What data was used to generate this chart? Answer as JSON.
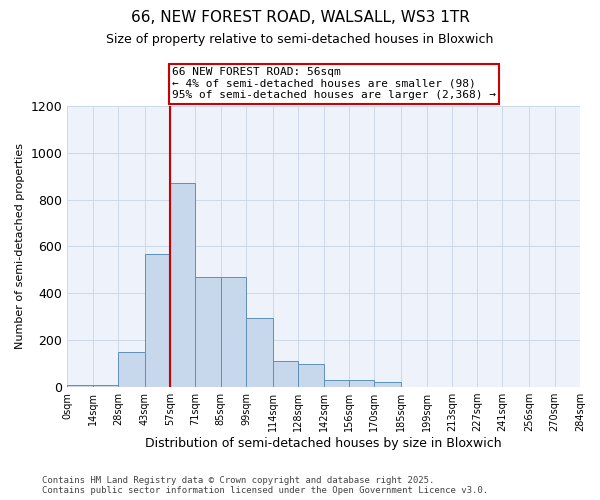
{
  "title_line1": "66, NEW FOREST ROAD, WALSALL, WS3 1TR",
  "title_line2": "Size of property relative to semi-detached houses in Bloxwich",
  "xlabel": "Distribution of semi-detached houses by size in Bloxwich",
  "ylabel": "Number of semi-detached properties",
  "bin_edges": [
    0,
    14,
    28,
    43,
    57,
    71,
    85,
    99,
    114,
    128,
    142,
    156,
    170,
    185,
    199,
    213,
    227,
    241,
    256,
    270,
    284
  ],
  "bin_labels": [
    "0sqm",
    "14sqm",
    "28sqm",
    "43sqm",
    "57sqm",
    "71sqm",
    "85sqm",
    "99sqm",
    "114sqm",
    "128sqm",
    "142sqm",
    "156sqm",
    "170sqm",
    "185sqm",
    "199sqm",
    "213sqm",
    "227sqm",
    "241sqm",
    "256sqm",
    "270sqm",
    "284sqm"
  ],
  "counts": [
    10,
    10,
    150,
    570,
    870,
    470,
    470,
    295,
    110,
    100,
    30,
    30,
    20,
    0,
    0,
    0,
    0,
    0,
    0,
    0
  ],
  "bar_color": "#c8d8ec",
  "bar_edge_color": "#6090b8",
  "ylim": [
    0,
    1200
  ],
  "yticks": [
    0,
    200,
    400,
    600,
    800,
    1000,
    1200
  ],
  "property_line_x": 57,
  "annotation_text": "66 NEW FOREST ROAD: 56sqm\n← 4% of semi-detached houses are smaller (98)\n95% of semi-detached houses are larger (2,368) →",
  "annotation_box_color": "#ffffff",
  "annotation_box_edge_color": "#cc0000",
  "vline_color": "#cc0000",
  "footer_line1": "Contains HM Land Registry data © Crown copyright and database right 2025.",
  "footer_line2": "Contains public sector information licensed under the Open Government Licence v3.0.",
  "grid_color": "#ccd8e8",
  "background_color": "#eef2fa"
}
